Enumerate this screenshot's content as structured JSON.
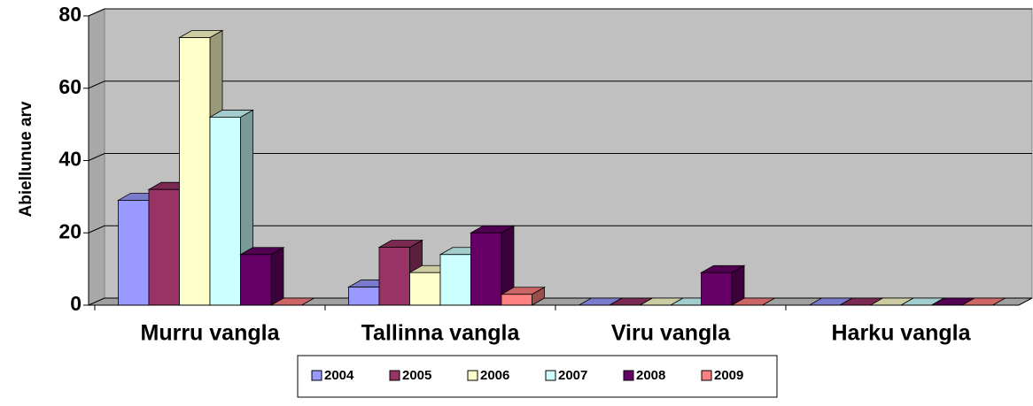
{
  "chart_data": {
    "type": "bar3d",
    "y_label": "Abiellunue arv",
    "categories": [
      "Murru vangla",
      "Tallinna vangla",
      "Viru vangla",
      "Harku vangla"
    ],
    "series": [
      {
        "name": "2004",
        "color": "#9999ff",
        "values": [
          29,
          5,
          0,
          0
        ]
      },
      {
        "name": "2005",
        "color": "#993366",
        "values": [
          32,
          16,
          0,
          0
        ]
      },
      {
        "name": "2006",
        "color": "#ffffcc",
        "values": [
          74,
          9,
          0,
          0
        ]
      },
      {
        "name": "2007",
        "color": "#ccffff",
        "values": [
          52,
          14,
          0,
          0
        ]
      },
      {
        "name": "2008",
        "color": "#660066",
        "values": [
          14,
          20,
          9,
          0
        ]
      },
      {
        "name": "2009",
        "color": "#ff8080",
        "values": [
          0,
          3,
          0,
          0
        ]
      }
    ],
    "ylim": [
      0,
      80
    ],
    "yticks": [
      0,
      20,
      40,
      60,
      80
    ],
    "grid": true,
    "legend": "bottom"
  }
}
